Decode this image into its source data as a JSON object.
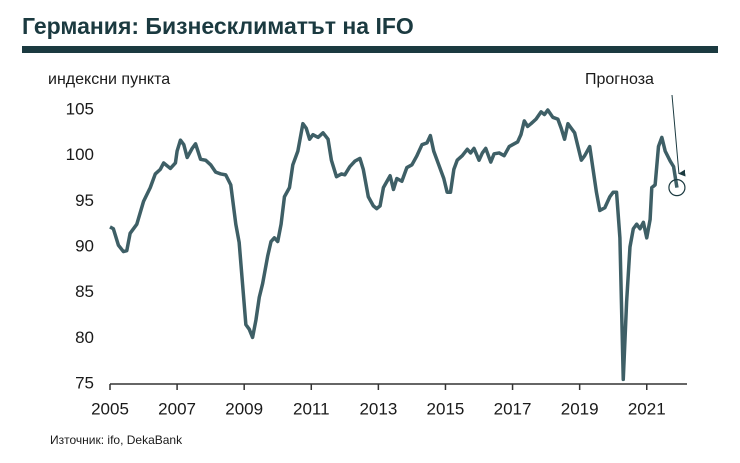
{
  "chart_data": {
    "type": "line",
    "title": "Германия: Бизнесклиматът на IFO",
    "y_label": "индексни пункта",
    "annotation": "Прогноза",
    "source": "Източник: ifo, DekaBank",
    "x": [
      2005.0,
      2005.1,
      2005.25,
      2005.4,
      2005.5,
      2005.6,
      2005.8,
      2006.0,
      2006.2,
      2006.35,
      2006.5,
      2006.6,
      2006.8,
      2006.95,
      2007.0,
      2007.1,
      2007.2,
      2007.3,
      2007.45,
      2007.55,
      2007.7,
      2007.85,
      2008.0,
      2008.15,
      2008.3,
      2008.45,
      2008.6,
      2008.75,
      2008.85,
      2008.95,
      2009.05,
      2009.15,
      2009.25,
      2009.35,
      2009.45,
      2009.55,
      2009.7,
      2009.8,
      2009.9,
      2010.0,
      2010.1,
      2010.2,
      2010.35,
      2010.45,
      2010.6,
      2010.75,
      2010.85,
      2010.95,
      2011.05,
      2011.2,
      2011.35,
      2011.5,
      2011.6,
      2011.75,
      2011.9,
      2012.0,
      2012.15,
      2012.3,
      2012.45,
      2012.55,
      2012.7,
      2012.85,
      2012.95,
      2013.05,
      2013.15,
      2013.35,
      2013.45,
      2013.55,
      2013.7,
      2013.85,
      2014.0,
      2014.15,
      2014.3,
      2014.45,
      2014.55,
      2014.65,
      2014.8,
      2014.95,
      2015.05,
      2015.15,
      2015.25,
      2015.35,
      2015.5,
      2015.65,
      2015.75,
      2015.85,
      2016.0,
      2016.1,
      2016.2,
      2016.35,
      2016.45,
      2016.6,
      2016.75,
      2016.9,
      2017.0,
      2017.15,
      2017.25,
      2017.35,
      2017.45,
      2017.55,
      2017.7,
      2017.85,
      2017.95,
      2018.05,
      2018.2,
      2018.35,
      2018.45,
      2018.55,
      2018.65,
      2018.75,
      2018.85,
      2018.95,
      2019.05,
      2019.15,
      2019.3,
      2019.4,
      2019.5,
      2019.6,
      2019.75,
      2019.9,
      2020.0,
      2020.1,
      2020.2,
      2020.3,
      2020.4,
      2020.5,
      2020.6,
      2020.7,
      2020.8,
      2020.9,
      2021.0,
      2021.1,
      2021.15,
      2021.25,
      2021.35,
      2021.45,
      2021.55,
      2021.7,
      2021.8,
      2021.9
    ],
    "series": [
      {
        "color": "#3e5f66",
        "values": [
          92.2,
          92,
          90.2,
          89.5,
          89.6,
          91.5,
          92.5,
          95,
          96.5,
          98,
          98.5,
          99.2,
          98.6,
          99.2,
          100.5,
          101.7,
          101.2,
          99.8,
          100.8,
          101.3,
          99.6,
          99.5,
          99,
          98.2,
          98,
          97.9,
          96.8,
          92.5,
          90.5,
          86,
          81.5,
          81,
          80.1,
          82,
          84.5,
          86,
          89,
          90.6,
          91,
          90.6,
          92.5,
          95.5,
          96.5,
          99,
          100.5,
          103.5,
          103,
          101.8,
          102.3,
          102,
          102.5,
          101.8,
          99.5,
          97.7,
          98,
          97.9,
          98.8,
          99.4,
          99.7,
          98.5,
          95.5,
          94.5,
          94.2,
          94.5,
          96.5,
          97.8,
          96.3,
          97.5,
          97.2,
          98.7,
          99,
          100,
          101.2,
          101.4,
          102.2,
          100.5,
          99,
          97.5,
          96,
          96,
          98.5,
          99.5,
          100,
          100.7,
          100.3,
          100.8,
          99.5,
          100.3,
          100.8,
          99.3,
          100.2,
          100.3,
          100,
          101,
          101.2,
          101.5,
          102.3,
          103.8,
          103.2,
          103.5,
          104,
          104.8,
          104.5,
          105,
          104.2,
          104,
          103,
          101.8,
          103.5,
          103,
          102.5,
          101,
          99.5,
          100,
          101,
          98.5,
          96,
          94,
          94.3,
          95.5,
          96,
          96,
          91,
          75.5,
          84,
          90,
          92,
          92.5,
          92,
          92.7,
          91,
          93,
          96.5,
          96.8,
          101,
          102,
          100.5,
          99.4,
          98.8,
          96.5
        ]
      }
    ],
    "xlim": [
      2005,
      2022.2
    ],
    "xticks": [
      2005,
      2007,
      2009,
      2011,
      2013,
      2015,
      2017,
      2019,
      2021
    ],
    "ylim": [
      75,
      105
    ],
    "yticks": [
      75,
      80,
      85,
      90,
      95,
      100,
      105
    ]
  }
}
